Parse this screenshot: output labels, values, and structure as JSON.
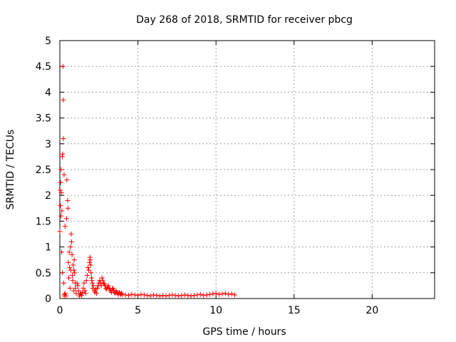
{
  "chart_data": {
    "type": "scatter",
    "title": "Day 268 of 2018, SRMTID for receiver pbcg",
    "xlabel": "GPS time / hours",
    "ylabel": "SRMTID / TECUs",
    "xlim": [
      0,
      24
    ],
    "ylim": [
      0,
      5
    ],
    "xticks": [
      0,
      5,
      10,
      15,
      20
    ],
    "yticks": [
      0,
      0.5,
      1,
      1.5,
      2,
      2.5,
      3,
      3.5,
      4,
      4.5,
      5
    ],
    "xtick_labels": [
      "0",
      "5",
      "10",
      "15",
      "20"
    ],
    "ytick_labels": [
      "0",
      "0.5",
      "1",
      "1.5",
      "2",
      "2.5",
      "3",
      "3.5",
      "4",
      "4.5",
      "5"
    ],
    "grid": true,
    "legend": "none",
    "marker": "plus",
    "color": "#ff0000",
    "series": [
      {
        "x": [
          0.0,
          0.02,
          0.04,
          0.05,
          0.07,
          0.08,
          0.1,
          0.12,
          0.13,
          0.15,
          0.17,
          0.18,
          0.2,
          0.22,
          0.23,
          0.25,
          0.27,
          0.28,
          0.3,
          0.33,
          0.35,
          0.4,
          0.43,
          0.45,
          0.5,
          0.52,
          0.55,
          0.57,
          0.6,
          0.62,
          0.65,
          0.68,
          0.7,
          0.72,
          0.75,
          0.78,
          0.8,
          0.82,
          0.85,
          0.88,
          0.9,
          0.92,
          0.95,
          0.98,
          1.0,
          1.05,
          1.1,
          1.15,
          1.2,
          1.25,
          1.3,
          1.35,
          1.4,
          1.45,
          1.5,
          1.55,
          1.6,
          1.65,
          1.7,
          1.75,
          1.8,
          1.85,
          1.9,
          1.93,
          1.95,
          1.97,
          2.0,
          2.03,
          2.05,
          2.08,
          2.1,
          2.15,
          2.2,
          2.25,
          2.3,
          2.35,
          2.4,
          2.45,
          2.5,
          2.55,
          2.6,
          2.65,
          2.7,
          2.75,
          2.8,
          2.85,
          2.9,
          2.95,
          3.0,
          3.05,
          3.1,
          3.15,
          3.2,
          3.25,
          3.3,
          3.35,
          3.4,
          3.45,
          3.5,
          3.55,
          3.6,
          3.65,
          3.7,
          3.75,
          3.8,
          3.85,
          3.9,
          3.95,
          4.0,
          4.2,
          4.4,
          4.6,
          4.8,
          5.0,
          5.2,
          5.4,
          5.6,
          5.8,
          6.0,
          6.2,
          6.4,
          6.6,
          6.8,
          7.0,
          7.2,
          7.4,
          7.6,
          7.8,
          8.0,
          8.2,
          8.4,
          8.6,
          8.8,
          9.0,
          9.2,
          9.4,
          9.6,
          9.8,
          10.0,
          10.2,
          10.4,
          10.6,
          10.8,
          11.0,
          11.2
        ],
        "y": [
          1.3,
          2.1,
          1.8,
          2.25,
          1.6,
          2.5,
          2.05,
          0.9,
          1.7,
          2.75,
          0.5,
          2.8,
          4.5,
          3.85,
          3.1,
          0.3,
          2.4,
          0.05,
          0.08,
          1.4,
          0.1,
          0.05,
          1.55,
          2.3,
          1.9,
          1.75,
          0.7,
          0.4,
          0.9,
          0.6,
          0.2,
          1.0,
          0.55,
          1.25,
          1.1,
          0.85,
          0.45,
          0.35,
          0.65,
          0.15,
          0.55,
          0.75,
          0.5,
          0.3,
          0.2,
          0.1,
          0.3,
          0.25,
          0.15,
          0.05,
          0.08,
          0.1,
          0.06,
          0.12,
          0.2,
          0.3,
          0.15,
          0.1,
          0.35,
          0.45,
          0.6,
          0.55,
          0.7,
          0.8,
          0.75,
          0.65,
          0.5,
          0.4,
          0.35,
          0.3,
          0.2,
          0.25,
          0.15,
          0.12,
          0.18,
          0.1,
          0.2,
          0.25,
          0.3,
          0.35,
          0.3,
          0.25,
          0.4,
          0.35,
          0.3,
          0.28,
          0.25,
          0.2,
          0.18,
          0.22,
          0.25,
          0.2,
          0.18,
          0.15,
          0.12,
          0.18,
          0.2,
          0.15,
          0.12,
          0.1,
          0.15,
          0.12,
          0.1,
          0.08,
          0.12,
          0.1,
          0.08,
          0.1,
          0.08,
          0.07,
          0.06,
          0.08,
          0.07,
          0.06,
          0.08,
          0.07,
          0.06,
          0.05,
          0.07,
          0.06,
          0.05,
          0.06,
          0.05,
          0.06,
          0.07,
          0.06,
          0.05,
          0.06,
          0.07,
          0.06,
          0.05,
          0.06,
          0.07,
          0.08,
          0.06,
          0.07,
          0.08,
          0.09,
          0.1,
          0.08,
          0.09,
          0.1,
          0.08,
          0.09,
          0.07
        ]
      }
    ]
  }
}
